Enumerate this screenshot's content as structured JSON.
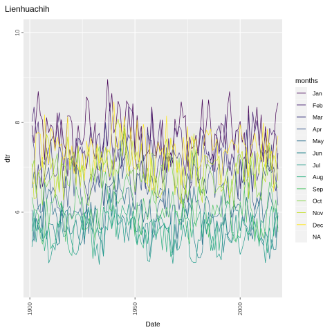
{
  "chart_data": {
    "type": "line",
    "title": "Lienhuachih",
    "xlabel": "Date",
    "ylabel": "dtr",
    "xlim": [
      1897,
      2020
    ],
    "ylim": [
      4.1,
      10.3
    ],
    "x_ticks": [
      1900,
      1950,
      2000
    ],
    "y_ticks": [
      6,
      8,
      10
    ],
    "grid": true,
    "legend": {
      "title": "months",
      "position": "right",
      "entries": [
        "Jan",
        "Feb",
        "Mar",
        "Apr",
        "May",
        "Jun",
        "Jul",
        "Aug",
        "Sep",
        "Oct",
        "Nov",
        "Dec",
        "NA"
      ]
    },
    "x_start_year": 1901,
    "x_end_year": 2018,
    "series": [
      {
        "name": "Jan",
        "color": "#440154",
        "base": 7.7,
        "amp": 0.75
      },
      {
        "name": "Feb",
        "color": "#482173",
        "base": 7.4,
        "amp": 0.7
      },
      {
        "name": "Mar",
        "color": "#433e85",
        "base": 7.0,
        "amp": 0.6
      },
      {
        "name": "Apr",
        "color": "#38598c",
        "base": 6.6,
        "amp": 0.55
      },
      {
        "name": "May",
        "color": "#2d708e",
        "base": 6.0,
        "amp": 0.5
      },
      {
        "name": "Jun",
        "color": "#25858e",
        "base": 5.6,
        "amp": 0.45
      },
      {
        "name": "Jul",
        "color": "#1e9b8a",
        "base": 5.5,
        "amp": 0.45
      },
      {
        "name": "Aug",
        "color": "#2ab07f",
        "base": 5.6,
        "amp": 0.45
      },
      {
        "name": "Sep",
        "color": "#52c569",
        "base": 6.0,
        "amp": 0.5
      },
      {
        "name": "Oct",
        "color": "#86d549",
        "base": 6.8,
        "amp": 0.55
      },
      {
        "name": "Nov",
        "color": "#c2df23",
        "base": 7.0,
        "amp": 0.6
      },
      {
        "name": "Dec",
        "color": "#fde725",
        "base": 7.3,
        "amp": 0.65
      }
    ],
    "na_color": "#e5e5e5"
  }
}
